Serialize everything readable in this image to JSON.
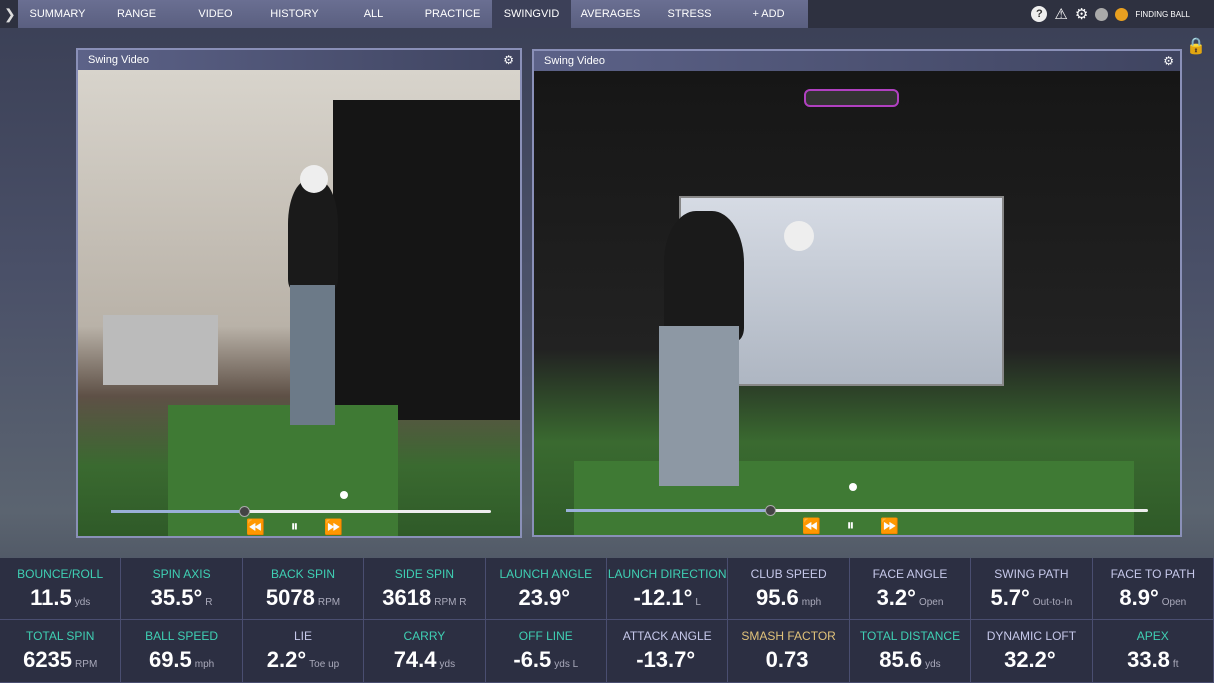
{
  "nav": {
    "tabs": [
      "SUMMARY",
      "RANGE",
      "VIDEO",
      "HISTORY",
      "ALL",
      "PRACTICE",
      "SWINGVID",
      "AVERAGES",
      "STRESS",
      "+ ADD"
    ],
    "active": "SWINGVID",
    "status": "FINDING BALL"
  },
  "panels": [
    {
      "title": "Swing Video",
      "progress": 0.35
    },
    {
      "title": "Swing Video",
      "progress": 0.35
    }
  ],
  "colors": {
    "teal": "#3fd0b4",
    "lavender": "#c6c8ea",
    "gold": "#e0c27a"
  },
  "stats": [
    {
      "label": "BOUNCE/ROLL",
      "value": "11.5",
      "unit": "yds",
      "color": "teal"
    },
    {
      "label": "SPIN AXIS",
      "value": "35.5°",
      "unit": "R",
      "color": "teal"
    },
    {
      "label": "BACK SPIN",
      "value": "5078",
      "unit": "RPM",
      "color": "teal"
    },
    {
      "label": "SIDE SPIN",
      "value": "3618",
      "unit": "RPM R",
      "color": "teal"
    },
    {
      "label": "LAUNCH ANGLE",
      "value": "23.9°",
      "unit": "",
      "color": "teal"
    },
    {
      "label": "LAUNCH DIRECTION",
      "value": "-12.1°",
      "unit": "L",
      "color": "teal"
    },
    {
      "label": "CLUB SPEED",
      "value": "95.6",
      "unit": "mph",
      "color": "lavender"
    },
    {
      "label": "FACE ANGLE",
      "value": "3.2°",
      "unit": "Open",
      "color": "lavender"
    },
    {
      "label": "SWING PATH",
      "value": "5.7°",
      "unit": "Out-to-In",
      "color": "lavender"
    },
    {
      "label": "FACE TO PATH",
      "value": "8.9°",
      "unit": "Open",
      "color": "lavender"
    },
    {
      "label": "TOTAL SPIN",
      "value": "6235",
      "unit": "RPM",
      "color": "teal"
    },
    {
      "label": "BALL SPEED",
      "value": "69.5",
      "unit": "mph",
      "color": "teal"
    },
    {
      "label": "LIE",
      "value": "2.2°",
      "unit": "Toe up",
      "color": "lavender"
    },
    {
      "label": "CARRY",
      "value": "74.4",
      "unit": "yds",
      "color": "teal"
    },
    {
      "label": "OFF LINE",
      "value": "-6.5",
      "unit": "yds L",
      "color": "teal"
    },
    {
      "label": "ATTACK ANGLE",
      "value": "-13.7°",
      "unit": "",
      "color": "lavender"
    },
    {
      "label": "SMASH FACTOR",
      "value": "0.73",
      "unit": "",
      "color": "gold"
    },
    {
      "label": "TOTAL DISTANCE",
      "value": "85.6",
      "unit": "yds",
      "color": "teal"
    },
    {
      "label": "DYNAMIC LOFT",
      "value": "32.2°",
      "unit": "",
      "color": "lavender"
    },
    {
      "label": "APEX",
      "value": "33.8",
      "unit": "ft",
      "color": "teal"
    }
  ]
}
